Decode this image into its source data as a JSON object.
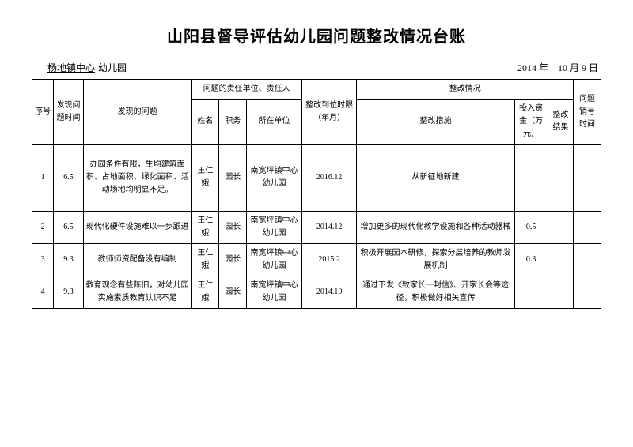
{
  "title": "山阳县督导评估幼儿园问题整改情况台账",
  "meta": {
    "left_prefix_blank": "　",
    "org_underlined": "杨地镇中心",
    "org_suffix": "幼儿园",
    "date": "2014 年　10 月 9 日"
  },
  "headers": {
    "seq": "序号",
    "found_time": "发现问题时间",
    "issue": "发现的问题",
    "resp_group": "问题的责任单位、责任人",
    "name": "姓名",
    "position": "职务",
    "unit": "所在单位",
    "deadline": "整改到位时限（年月）",
    "rect_group": "整改情况",
    "measure": "整改措施",
    "fund": "投入资金（万元）",
    "result": "整改结果",
    "cancel": "问题销号时间"
  },
  "rows": [
    {
      "seq": "1",
      "time": "6.5",
      "issue": "办园条件有限，生均建筑面积、占地面积、绿化面积、活动场地均明显不足。",
      "name": "王仁娥",
      "position": "园长",
      "unit": "南宽坪镇中心幼儿园",
      "deadline": "2016.12",
      "measure": "从新征地新建",
      "fund": "",
      "result": "",
      "cancel": ""
    },
    {
      "seq": "2",
      "time": "6.5",
      "issue": "现代化硬件设施难以一步跟进",
      "name": "王仁娥",
      "position": "园长",
      "unit": "南宽坪镇中心幼儿园",
      "deadline": "2014.12",
      "measure": "增加更多的现代化教学设施和各种活动器械",
      "fund": "0.5",
      "result": "",
      "cancel": ""
    },
    {
      "seq": "3",
      "time": "9.3",
      "issue": "教师师资配备没有编制",
      "name": "王仁娥",
      "position": "园长",
      "unit": "南宽坪镇中心幼儿园",
      "deadline": "2015.2",
      "measure": "积极开展园本研修，探索分层培养的教师发展机制",
      "fund": "0.3",
      "result": "",
      "cancel": ""
    },
    {
      "seq": "4",
      "time": "9.3",
      "issue": "教育观念有些陈旧，对幼儿园实施素质教育认识不足",
      "name": "王仁娥",
      "position": "园长",
      "unit": "南宽坪镇中心幼儿园",
      "deadline": "2014.10",
      "measure": "通过下发《致家长一封信》、开家长会等途径，积极做好相关宣传",
      "fund": "",
      "result": "",
      "cancel": ""
    }
  ]
}
